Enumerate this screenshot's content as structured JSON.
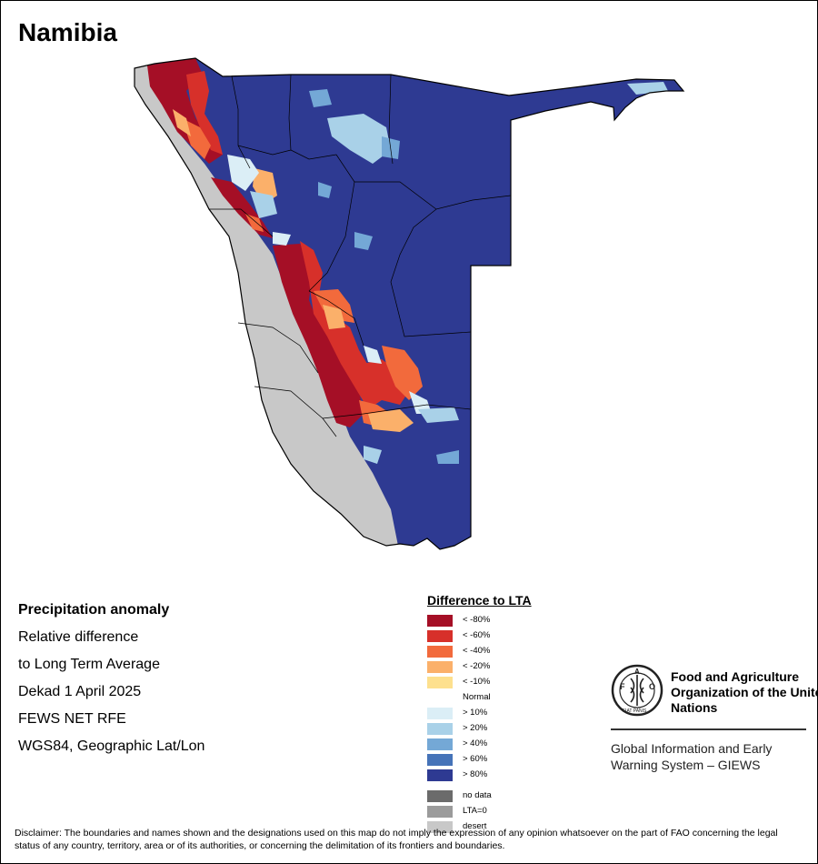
{
  "map": {
    "title": "Namibia",
    "colors": {
      "land_outline": "#000000",
      "desert": "#c8c8c8",
      "wet80": "#2e3a92",
      "wet60": "#4573b8",
      "wet40": "#74a8d6",
      "wet20": "#a9d1e8",
      "wet10": "#dbeef6",
      "dry10": "#fde08e",
      "dry20": "#fbb06a",
      "dry40": "#f26a3c",
      "dry60": "#d7302a",
      "dry80": "#a50f26"
    }
  },
  "info": {
    "heading": "Precipitation anomaly",
    "line1": "Relative difference",
    "line2": "to Long Term Average",
    "period": "Dekad 1 April 2025",
    "source": "FEWS NET RFE",
    "projection": "WGS84, Geographic Lat/Lon"
  },
  "legend": {
    "title": "Difference to LTA",
    "items": [
      {
        "label": "< -80%",
        "color": "#a50f26"
      },
      {
        "label": "< -60%",
        "color": "#d7302a"
      },
      {
        "label": "< -40%",
        "color": "#f26a3c"
      },
      {
        "label": "< -20%",
        "color": "#fbb06a"
      },
      {
        "label": "< -10%",
        "color": "#fde08e"
      },
      {
        "label": "Normal",
        "color": "#ffffff"
      },
      {
        "label": "> 10%",
        "color": "#dbeef6"
      },
      {
        "label": "> 20%",
        "color": "#a9d1e8"
      },
      {
        "label": "> 40%",
        "color": "#74a8d6"
      },
      {
        "label": "> 60%",
        "color": "#4573b8"
      },
      {
        "label": "> 80%",
        "color": "#2e3a92"
      }
    ],
    "extra": [
      {
        "label": "no data",
        "color": "#6b6b6b"
      },
      {
        "label": "LTA=0",
        "color": "#9b9b9b"
      },
      {
        "label": "desert",
        "color": "#c8c8c8"
      }
    ]
  },
  "fao": {
    "logo_icon": "fao-emblem-icon",
    "logo_text": "FAO",
    "logo_motto": "FIAT PANIS",
    "name": "Food and Agriculture Organization of the United Nations",
    "system": "Global Information and Early Warning System – GIEWS"
  },
  "disclaimer": "Disclaimer: The boundaries and names shown and the designations used on this map do not imply the expression of any opinion whatsoever on the part of FAO concerning the legal status of any country, territory, area or of its authorities, or concerning the delimitation of its frontiers and boundaries."
}
